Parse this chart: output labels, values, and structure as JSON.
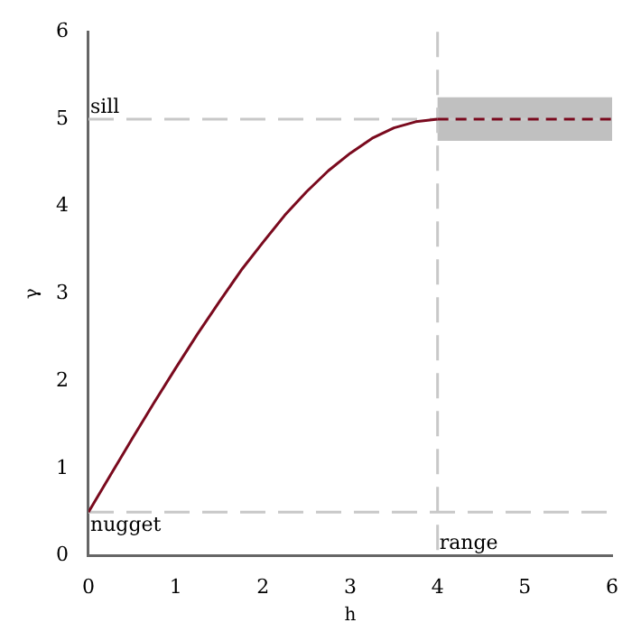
{
  "chart_data": {
    "type": "line",
    "xlabel": "h",
    "ylabel": "γ",
    "xlim": [
      0,
      6
    ],
    "xticks": [
      0,
      1,
      2,
      3,
      4,
      5,
      6
    ],
    "ylim": [
      0,
      6
    ],
    "yticks": [
      0,
      1,
      2,
      3,
      4,
      5,
      6
    ],
    "grid": false,
    "legend": false,
    "marker": "none",
    "series": [
      {
        "color": "#7a0a1e",
        "line_style": "solid",
        "x": [
          0,
          0.25,
          0.5,
          0.75,
          1,
          1.25,
          1.5,
          1.75,
          2,
          2.25,
          2.5,
          2.75,
          3,
          3.25,
          3.5,
          3.75,
          4
        ],
        "values": [
          0.5,
          0.92,
          1.34,
          1.75,
          2.15,
          2.54,
          2.91,
          3.27,
          3.59,
          3.9,
          4.17,
          4.41,
          4.61,
          4.78,
          4.9,
          4.97,
          5
        ]
      },
      {
        "color": "#7a0a1e",
        "line_style": "dashed",
        "x": [
          4,
          6
        ],
        "values": [
          5,
          5
        ],
        "lower": [
          4.75,
          4.75
        ],
        "upper": [
          5.25,
          5.25
        ]
      }
    ],
    "ref_lines": [
      {
        "axis": "y",
        "value": 5,
        "label": "sill",
        "color": "#c8c8c8",
        "line_style": "dashed"
      },
      {
        "axis": "y",
        "value": 0.5,
        "label": "nugget",
        "color": "#c8c8c8",
        "line_style": "dashed"
      },
      {
        "axis": "x",
        "value": 4,
        "label": "range",
        "color": "#c8c8c8",
        "line_style": "dashed"
      }
    ]
  }
}
